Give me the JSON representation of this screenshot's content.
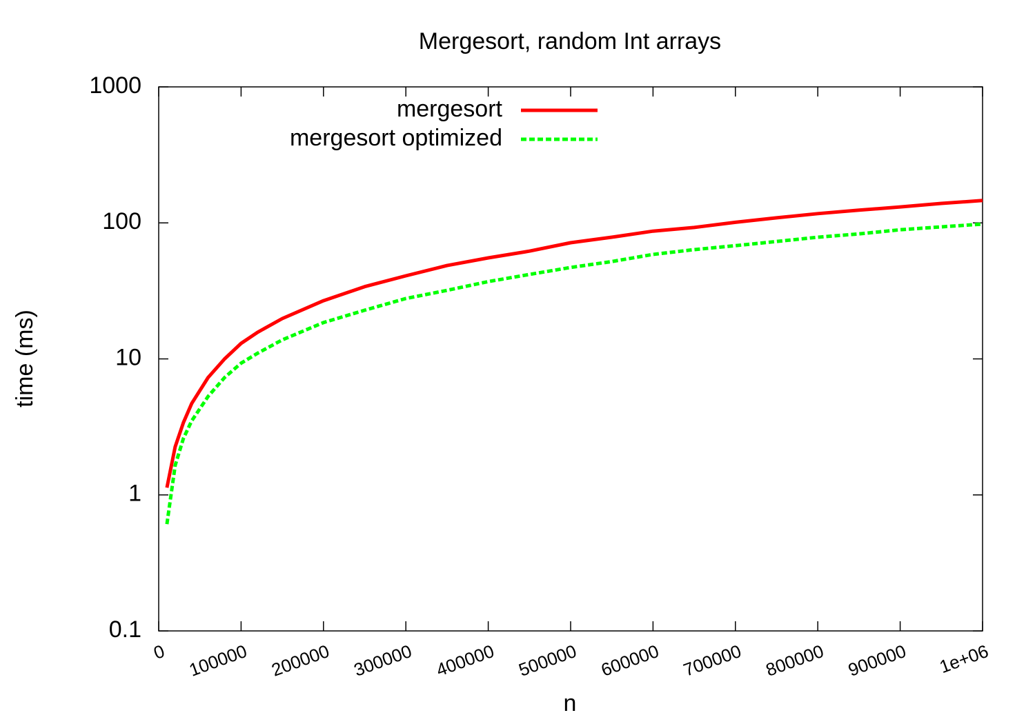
{
  "chart_data": {
    "type": "line",
    "title": "Mergesort, random Int arrays",
    "x_label": "n",
    "y_label": "time (ms)",
    "x": [
      10000,
      20000,
      30000,
      40000,
      60000,
      80000,
      100000,
      120000,
      150000,
      200000,
      250000,
      300000,
      350000,
      400000,
      450000,
      500000,
      550000,
      600000,
      650000,
      700000,
      750000,
      800000,
      850000,
      900000,
      950000,
      1000000
    ],
    "series": [
      {
        "name": "mergesort",
        "color": "#ff0000",
        "dashed": false,
        "values": [
          1.13,
          2.26,
          3.4,
          4.7,
          7.3,
          10,
          13,
          15.7,
          19.8,
          26.8,
          34,
          40.8,
          48.6,
          55.3,
          62,
          71.5,
          78.5,
          87,
          92.5,
          101,
          109,
          117,
          124,
          131,
          139,
          146
        ]
      },
      {
        "name": "mergesort optimized",
        "color": "#00ff00",
        "dashed": true,
        "values": [
          0.61,
          1.65,
          2.6,
          3.5,
          5.3,
          7.3,
          9.3,
          11,
          13.8,
          18.5,
          22.8,
          27.8,
          31.9,
          37,
          41.8,
          47,
          52,
          58.6,
          63.6,
          68,
          73,
          78.5,
          83,
          89,
          93.5,
          98
        ]
      }
    ],
    "xlim": [
      0,
      1000000
    ],
    "xticks": [
      0,
      100000,
      200000,
      300000,
      400000,
      500000,
      600000,
      700000,
      800000,
      900000,
      {
        "value": 1000000,
        "label": "1e+06"
      }
    ],
    "ylim": [
      0.1,
      1000
    ],
    "yticks": [
      0.1,
      1,
      10,
      100,
      1000
    ],
    "ylog": true,
    "grid": false,
    "legend": "top"
  }
}
